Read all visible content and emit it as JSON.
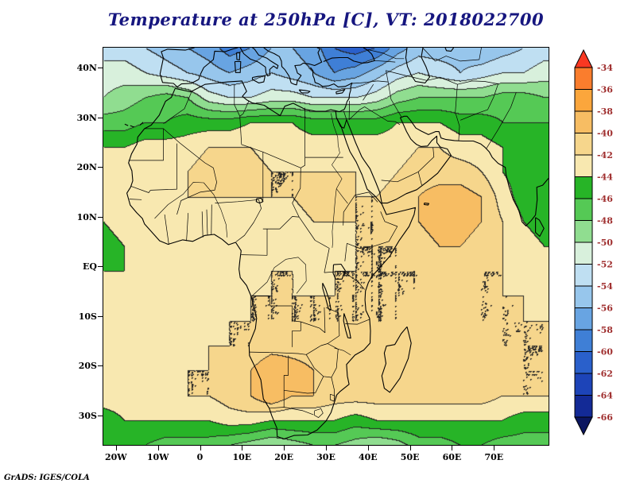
{
  "title": {
    "text": "Temperature at 250hPa [C], VT: 2018022700",
    "color": "#16167f"
  },
  "credit": "GrADS: IGES/COLA",
  "axes": {
    "lat_ticks": [
      {
        "label": "40N",
        "lat": 40
      },
      {
        "label": "30N",
        "lat": 30
      },
      {
        "label": "20N",
        "lat": 20
      },
      {
        "label": "10N",
        "lat": 10
      },
      {
        "label": "EQ",
        "lat": 0
      },
      {
        "label": "10S",
        "lat": -10
      },
      {
        "label": "20S",
        "lat": -20
      },
      {
        "label": "30S",
        "lat": -30
      }
    ],
    "lon_ticks": [
      {
        "label": "20W",
        "lon": -20
      },
      {
        "label": "10W",
        "lon": -10
      },
      {
        "label": "0",
        "lon": 0
      },
      {
        "label": "10E",
        "lon": 10
      },
      {
        "label": "20E",
        "lon": 20
      },
      {
        "label": "30E",
        "lon": 30
      },
      {
        "label": "40E",
        "lon": 40
      },
      {
        "label": "50E",
        "lon": 50
      },
      {
        "label": "60E",
        "lon": 60
      },
      {
        "label": "70E",
        "lon": 70
      }
    ]
  },
  "colorbar": {
    "labels": [
      "-34",
      "-36",
      "-38",
      "-40",
      "-42",
      "-44",
      "-46",
      "-48",
      "-50",
      "-52",
      "-54",
      "-56",
      "-58",
      "-60",
      "-62",
      "-64",
      "-66"
    ],
    "label_color": "#a03030",
    "palette_top_to_bottom": [
      "#f93822",
      "#fa7d2d",
      "#fba63c",
      "#f7bd63",
      "#f6d68c",
      "#f8e8b0",
      "#27b427",
      "#55c955",
      "#90dd90",
      "#d8f0dc",
      "#bfdff2",
      "#97c6ec",
      "#68a4e2",
      "#3f7fd6",
      "#2a60cb",
      "#1d44b8",
      "#132a96",
      "#0b1660"
    ]
  },
  "chart_data": {
    "type": "heatmap",
    "title": "Temperature at 250hPa [C], VT: 2018022700",
    "variable": "Temperature",
    "pressure_level": "250hPa",
    "units": "C",
    "valid_time": "2018022700",
    "contour_interval": 2,
    "levels_c": [
      -66,
      -64,
      -62,
      -60,
      -58,
      -56,
      -54,
      -52,
      -50,
      -48,
      -46,
      -44,
      -42,
      -40,
      -38,
      -36,
      -34
    ],
    "lon_range": [
      -23,
      83
    ],
    "lat_range": [
      -36,
      44
    ],
    "grid": {
      "lons": [
        -23,
        -18,
        -13,
        -8,
        -3,
        2,
        7,
        12,
        17,
        22,
        27,
        32,
        37,
        42,
        47,
        52,
        57,
        62,
        67,
        72,
        77,
        82
      ],
      "lats": [
        44,
        39,
        34,
        29,
        24,
        19,
        14,
        9,
        4,
        -1,
        -6,
        -11,
        -16,
        -21,
        -26,
        -31,
        -36
      ],
      "temps_c": [
        [
          -53,
          -53,
          -54,
          -55,
          -56,
          -57,
          -59,
          -58,
          -56,
          -56,
          -57,
          -60,
          -61,
          -60,
          -57,
          -55,
          -55,
          -55,
          -56,
          -55,
          -54,
          -53
        ],
        [
          -51,
          -51,
          -52,
          -53,
          -54,
          -55,
          -56,
          -55,
          -54,
          -55,
          -56,
          -58,
          -57,
          -55,
          -53,
          -52,
          -53,
          -54,
          -53,
          -52,
          -52,
          -51
        ],
        [
          -50,
          -49,
          -48,
          -47,
          -48,
          -51,
          -52,
          -52,
          -51,
          -51,
          -52,
          -52,
          -52,
          -51,
          -49,
          -48,
          -48,
          -48,
          -48,
          -47,
          -47,
          -48
        ],
        [
          -47,
          -47,
          -46,
          -46,
          -45,
          -45,
          -45,
          -44,
          -44,
          -44,
          -45,
          -45,
          -45,
          -45,
          -44,
          -44,
          -44,
          -45,
          -45,
          -46,
          -46,
          -46
        ],
        [
          -44,
          -44,
          -43,
          -43,
          -43,
          -42,
          -42,
          -42,
          -43,
          -43,
          -43,
          -43,
          -43,
          -43,
          -43,
          -42,
          -42,
          -43,
          -43,
          -44,
          -45,
          -45
        ],
        [
          -43,
          -43,
          -43,
          -42,
          -42,
          -41,
          -41,
          -41,
          -42,
          -42,
          -42,
          -42,
          -42,
          -43,
          -42,
          -41,
          -41,
          -41,
          -42,
          -44,
          -45,
          -45
        ],
        [
          -43,
          -43,
          -43,
          -43,
          -42,
          -42,
          -42,
          -42,
          -42,
          -42,
          -41,
          -41,
          -42,
          -42,
          -41,
          -40,
          -39,
          -39,
          -40,
          -43,
          -45,
          -45
        ],
        [
          -44,
          -43,
          -43,
          -43,
          -43,
          -43,
          -43,
          -43,
          -43,
          -43,
          -42,
          -42,
          -42,
          -42,
          -41,
          -40,
          -39,
          -39,
          -40,
          -42,
          -44,
          -45
        ],
        [
          -45,
          -44,
          -43,
          -43,
          -43,
          -43,
          -43,
          -43,
          -43,
          -43,
          -43,
          -43,
          -42,
          -42,
          -42,
          -41,
          -40,
          -40,
          -41,
          -42,
          -43,
          -44
        ],
        [
          -44,
          -44,
          -43,
          -43,
          -43,
          -43,
          -43,
          -43,
          -42,
          -42,
          -43,
          -42,
          -42,
          -42,
          -42,
          -42,
          -41,
          -41,
          -42,
          -42,
          -43,
          -43
        ],
        [
          -44,
          -43,
          -43,
          -43,
          -43,
          -43,
          -43,
          -42,
          -42,
          -42,
          -42,
          -42,
          -42,
          -42,
          -42,
          -42,
          -42,
          -42,
          -42,
          -42,
          -42,
          -43
        ],
        [
          -43,
          -43,
          -43,
          -43,
          -43,
          -43,
          -42,
          -42,
          -42,
          -42,
          -42,
          -42,
          -42,
          -42,
          -42,
          -41,
          -41,
          -41,
          -42,
          -42,
          -42,
          -42
        ],
        [
          -43,
          -43,
          -43,
          -43,
          -43,
          -42,
          -42,
          -42,
          -41,
          -41,
          -41,
          -41,
          -41,
          -42,
          -41,
          -41,
          -41,
          -41,
          -41,
          -42,
          -42,
          -42
        ],
        [
          -43,
          -43,
          -43,
          -43,
          -42,
          -42,
          -41,
          -40,
          -38,
          -39,
          -40,
          -40,
          -41,
          -41,
          -41,
          -41,
          -40,
          -41,
          -41,
          -41,
          -42,
          -42
        ],
        [
          -43,
          -43,
          -43,
          -43,
          -42,
          -42,
          -41,
          -40,
          -38,
          -40,
          -40,
          -41,
          -41,
          -41,
          -41,
          -41,
          -41,
          -41,
          -41,
          -42,
          -42,
          -42
        ],
        [
          -45,
          -44,
          -44,
          -44,
          -44,
          -44,
          -43,
          -43,
          -44,
          -44,
          -44,
          -44,
          -45,
          -44,
          -44,
          -44,
          -44,
          -44,
          -44,
          -44,
          -45,
          -45
        ],
        [
          -46,
          -46,
          -46,
          -47,
          -47,
          -47,
          -48,
          -49,
          -50,
          -49,
          -48,
          -48,
          -49,
          -50,
          -49,
          -47,
          -47,
          -46,
          -46,
          -47,
          -47,
          -47
        ]
      ]
    }
  }
}
